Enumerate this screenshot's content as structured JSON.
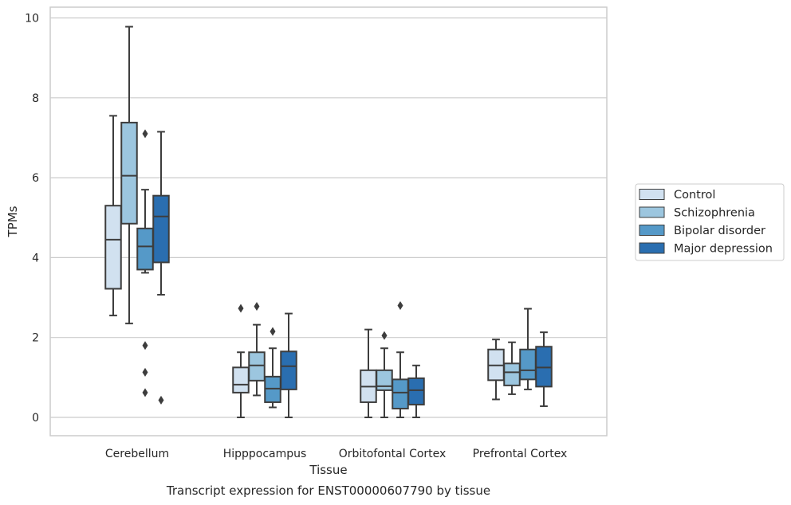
{
  "chart_data": {
    "type": "boxplot",
    "title": "Transcript expression for ENST00000607790 by tissue",
    "xlabel": "Tissue",
    "ylabel": "TPMs",
    "ylim": [
      -0.45,
      10.3
    ],
    "yticks": [
      "0",
      "2",
      "4",
      "6",
      "8",
      "10"
    ],
    "grid": "horizontal",
    "legend_position": "right",
    "categories": [
      "Cerebellum",
      "Hipppocampus",
      "Orbitofontal Cortex",
      "Prefrontal Cortex"
    ],
    "series": [
      {
        "name": "Control",
        "color": "#d1e1f0",
        "boxes": [
          {
            "whisker_low": 2.55,
            "q1": 3.22,
            "median": 4.45,
            "q3": 5.3,
            "whisker_high": 7.55,
            "outliers": []
          },
          {
            "whisker_low": 0.0,
            "q1": 0.62,
            "median": 0.82,
            "q3": 1.25,
            "whisker_high": 1.63,
            "outliers": [
              2.73
            ]
          },
          {
            "whisker_low": 0.0,
            "q1": 0.38,
            "median": 0.77,
            "q3": 1.18,
            "whisker_high": 2.2,
            "outliers": []
          },
          {
            "whisker_low": 0.45,
            "q1": 0.93,
            "median": 1.3,
            "q3": 1.7,
            "whisker_high": 1.95,
            "outliers": []
          }
        ]
      },
      {
        "name": "Schizophrenia",
        "color": "#9cc6df",
        "boxes": [
          {
            "whisker_low": 2.35,
            "q1": 4.85,
            "median": 6.05,
            "q3": 7.38,
            "whisker_high": 9.78,
            "outliers": []
          },
          {
            "whisker_low": 0.55,
            "q1": 0.92,
            "median": 1.3,
            "q3": 1.63,
            "whisker_high": 2.32,
            "outliers": [
              2.78
            ]
          },
          {
            "whisker_low": 0.0,
            "q1": 0.68,
            "median": 0.78,
            "q3": 1.18,
            "whisker_high": 1.73,
            "outliers": [
              2.05
            ]
          },
          {
            "whisker_low": 0.58,
            "q1": 0.8,
            "median": 1.13,
            "q3": 1.35,
            "whisker_high": 1.88,
            "outliers": []
          }
        ]
      },
      {
        "name": "Bipolar disorder",
        "color": "#5599c8",
        "boxes": [
          {
            "whisker_low": 3.62,
            "q1": 3.7,
            "median": 4.28,
            "q3": 4.73,
            "whisker_high": 5.7,
            "outliers": [
              7.1,
              1.8,
              1.13,
              0.62
            ]
          },
          {
            "whisker_low": 0.25,
            "q1": 0.38,
            "median": 0.72,
            "q3": 1.02,
            "whisker_high": 1.73,
            "outliers": [
              2.15
            ]
          },
          {
            "whisker_low": 0.0,
            "q1": 0.22,
            "median": 0.62,
            "q3": 0.95,
            "whisker_high": 1.63,
            "outliers": [
              2.8
            ]
          },
          {
            "whisker_low": 0.7,
            "q1": 0.95,
            "median": 1.18,
            "q3": 1.7,
            "whisker_high": 2.72,
            "outliers": []
          }
        ]
      },
      {
        "name": "Major depression",
        "color": "#2a6eb0",
        "boxes": [
          {
            "whisker_low": 3.07,
            "q1": 3.88,
            "median": 5.03,
            "q3": 5.55,
            "whisker_high": 7.15,
            "outliers": [
              0.43
            ]
          },
          {
            "whisker_low": 0.0,
            "q1": 0.7,
            "median": 1.28,
            "q3": 1.65,
            "whisker_high": 2.6,
            "outliers": []
          },
          {
            "whisker_low": 0.0,
            "q1": 0.32,
            "median": 0.68,
            "q3": 0.98,
            "whisker_high": 1.3,
            "outliers": []
          },
          {
            "whisker_low": 0.28,
            "q1": 0.77,
            "median": 1.25,
            "q3": 1.77,
            "whisker_high": 2.13,
            "outliers": []
          }
        ]
      }
    ]
  }
}
